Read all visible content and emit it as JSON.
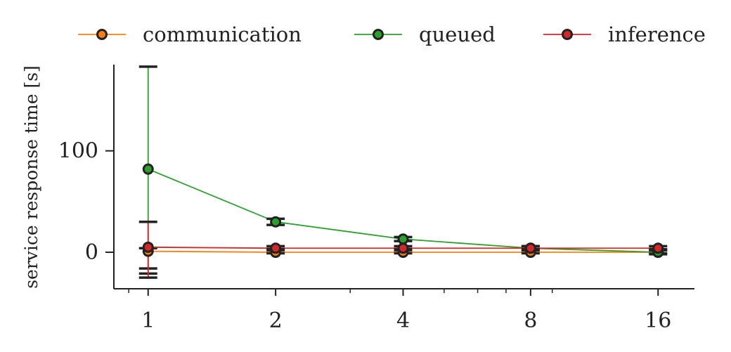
{
  "chart_data": {
    "type": "line",
    "xlabel": "",
    "ylabel": "service response time [s]",
    "x_scale": "log2",
    "x": [
      1,
      2,
      4,
      8,
      16
    ],
    "x_tick_labels": [
      "1",
      "2",
      "4",
      "8",
      "16"
    ],
    "y_ticks": [
      0,
      100
    ],
    "y_tick_labels": [
      "0",
      "100"
    ],
    "ylim": [
      -36,
      185
    ],
    "xlim": [
      0.83,
      19.5
    ],
    "grid": false,
    "legend_position": "top",
    "series": [
      {
        "name": "communication",
        "color": "#ff7f0e",
        "values": [
          1,
          0,
          0,
          0,
          0
        ],
        "error_low": [
          -21,
          -1,
          -1,
          -1,
          -1
        ],
        "error_high": [
          4,
          2,
          2,
          2,
          2
        ]
      },
      {
        "name": "queued",
        "color": "#2ca02c",
        "values": [
          82,
          30,
          13,
          4,
          0
        ],
        "error_low": [
          -16,
          27,
          11,
          2,
          -2
        ],
        "error_high": [
          183,
          33,
          15,
          6,
          2
        ]
      },
      {
        "name": "inference",
        "color": "#d62728",
        "values": [
          5,
          4,
          4,
          4,
          4
        ],
        "error_low": [
          -25,
          3,
          3,
          3,
          3
        ],
        "error_high": [
          30,
          6,
          6,
          6,
          6
        ]
      }
    ]
  }
}
